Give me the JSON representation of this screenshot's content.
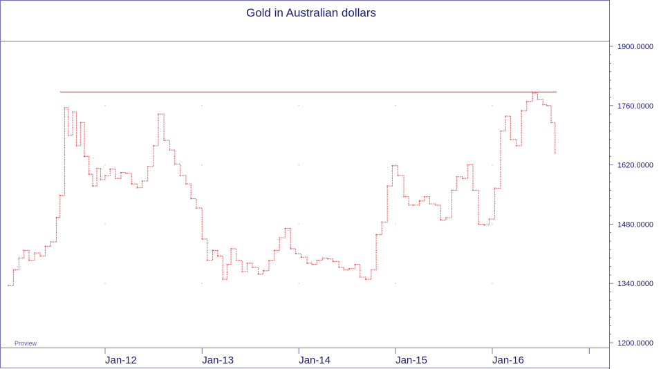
{
  "colors": {
    "frame": "#7070b0",
    "text": "#1a1a7a",
    "price": "#e05858",
    "grid_dot": "#c8c8c8"
  },
  "watermark": "Proview",
  "chart_data": {
    "type": "line",
    "title": "Gold in Australian dollars",
    "xlabel": "",
    "ylabel": "",
    "ylim": [
      1200,
      1900
    ],
    "yticks": [
      1200,
      1340,
      1480,
      1620,
      1760,
      1900
    ],
    "ytick_labels": [
      "1200.0000",
      "1340.0000",
      "1480.0000",
      "1620.0000",
      "1760.0000",
      "1900.0000"
    ],
    "xlim": [
      "2011-01-01",
      "2016-12-31"
    ],
    "xticks": [
      "2012-01-01",
      "2013-01-01",
      "2014-01-01",
      "2015-01-01",
      "2016-01-01"
    ],
    "xtick_labels": [
      "Jan-12",
      "Jan-13",
      "Jan-14",
      "Jan-15",
      "Jan-16"
    ],
    "grid": false,
    "legend": "none",
    "resistance_line": {
      "y": 1792,
      "x_start": "2011-07-15",
      "x_end": "2016-08-31"
    },
    "series": [
      {
        "x": [
          "2011-01-01",
          "2011-01-20",
          "2011-02-10",
          "2011-03-01",
          "2011-03-20",
          "2011-04-10",
          "2011-05-01",
          "2011-05-20",
          "2011-06-10",
          "2011-07-01",
          "2011-07-15",
          "2011-08-01",
          "2011-08-15",
          "2011-09-01",
          "2011-09-15",
          "2011-10-01",
          "2011-10-15",
          "2011-11-01",
          "2011-11-15",
          "2011-12-01",
          "2011-12-15",
          "2012-01-01",
          "2012-01-20",
          "2012-02-10",
          "2012-03-01",
          "2012-03-20",
          "2012-04-10",
          "2012-05-01",
          "2012-05-20",
          "2012-06-10",
          "2012-07-01",
          "2012-07-20",
          "2012-08-10",
          "2012-09-01",
          "2012-09-20",
          "2012-10-10",
          "2012-11-01",
          "2012-11-20",
          "2012-12-10",
          "2013-01-01",
          "2013-01-20",
          "2013-02-10",
          "2013-03-01",
          "2013-03-20",
          "2013-04-05",
          "2013-04-20",
          "2013-05-10",
          "2013-06-01",
          "2013-06-20",
          "2013-07-10",
          "2013-08-01",
          "2013-08-20",
          "2013-09-10",
          "2013-10-01",
          "2013-10-20",
          "2013-11-10",
          "2013-12-01",
          "2013-12-20",
          "2014-01-10",
          "2014-02-01",
          "2014-02-20",
          "2014-03-10",
          "2014-04-01",
          "2014-04-20",
          "2014-05-10",
          "2014-06-01",
          "2014-06-20",
          "2014-07-10",
          "2014-08-01",
          "2014-08-20",
          "2014-09-10",
          "2014-10-01",
          "2014-10-20",
          "2014-11-10",
          "2014-12-01",
          "2014-12-20",
          "2015-01-10",
          "2015-02-01",
          "2015-02-20",
          "2015-03-10",
          "2015-04-01",
          "2015-04-20",
          "2015-05-10",
          "2015-06-01",
          "2015-06-20",
          "2015-07-10",
          "2015-08-01",
          "2015-08-20",
          "2015-09-10",
          "2015-10-01",
          "2015-10-20",
          "2015-11-10",
          "2015-12-01",
          "2015-12-20",
          "2016-01-10",
          "2016-02-01",
          "2016-02-20",
          "2016-03-10",
          "2016-04-01",
          "2016-04-20",
          "2016-05-10",
          "2016-06-01",
          "2016-06-20",
          "2016-07-10",
          "2016-07-25",
          "2016-08-10",
          "2016-08-25"
        ],
        "values": [
          1335,
          1372,
          1400,
          1418,
          1395,
          1412,
          1405,
          1428,
          1438,
          1496,
          1548,
          1755,
          1690,
          1745,
          1665,
          1720,
          1640,
          1598,
          1570,
          1612,
          1585,
          1595,
          1610,
          1588,
          1602,
          1600,
          1575,
          1566,
          1582,
          1616,
          1665,
          1740,
          1678,
          1655,
          1622,
          1595,
          1575,
          1540,
          1518,
          1445,
          1395,
          1418,
          1405,
          1350,
          1385,
          1422,
          1395,
          1368,
          1388,
          1378,
          1362,
          1370,
          1395,
          1418,
          1448,
          1470,
          1422,
          1410,
          1402,
          1388,
          1385,
          1395,
          1400,
          1398,
          1392,
          1378,
          1372,
          1375,
          1385,
          1355,
          1350,
          1372,
          1455,
          1485,
          1570,
          1618,
          1595,
          1545,
          1525,
          1525,
          1535,
          1545,
          1528,
          1525,
          1490,
          1495,
          1560,
          1592,
          1588,
          1620,
          1560,
          1480,
          1478,
          1492,
          1565,
          1700,
          1735,
          1680,
          1665,
          1748,
          1770,
          1790,
          1775,
          1762,
          1760,
          1720,
          1648
        ]
      }
    ]
  }
}
